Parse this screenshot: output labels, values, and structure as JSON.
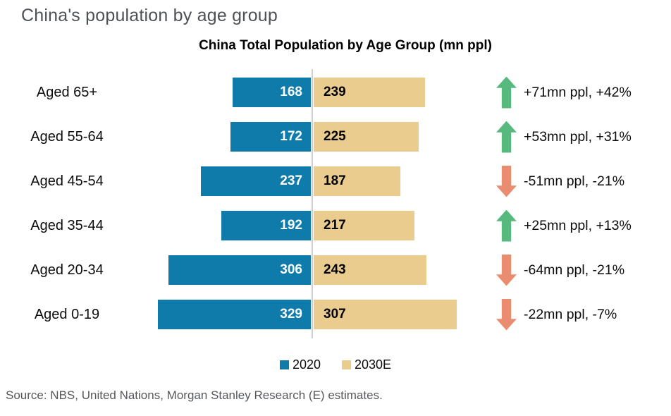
{
  "page": {
    "header": "China's population by age group",
    "source": "Source: NBS, United Nations, Morgan Stanley Research (E) estimates."
  },
  "chart_data": {
    "type": "bar",
    "variant": "diverging-horizontal",
    "title": "China Total Population by Age Group (mn ppl)",
    "unit": "mn ppl",
    "categories": [
      "Aged 65+",
      "Aged 55-64",
      "Aged 45-54",
      "Aged 35-44",
      "Aged 20-34",
      "Aged 0-19"
    ],
    "series": [
      {
        "name": "2020",
        "color": "#0f7bab",
        "values": [
          168,
          172,
          237,
          192,
          306,
          329
        ]
      },
      {
        "name": "2030E",
        "color": "#e9cc8e",
        "values": [
          239,
          225,
          187,
          217,
          243,
          307
        ]
      }
    ],
    "changes": [
      {
        "direction": "up",
        "label": "+71mn ppl, +42%"
      },
      {
        "direction": "up",
        "label": "+53mn ppl, +31%"
      },
      {
        "direction": "down",
        "label": "-51mn ppl, -21%"
      },
      {
        "direction": "up",
        "label": "+25mn ppl, +13%"
      },
      {
        "direction": "down",
        "label": "-64mn ppl, -21%"
      },
      {
        "direction": "down",
        "label": "-22mn ppl, -7%"
      }
    ],
    "colors": {
      "up": "#58b97f",
      "down": "#e98c70",
      "axis_line": "#cfcfcf"
    },
    "legend_position": "bottom",
    "grid": false,
    "axis_labels_hidden": true
  }
}
